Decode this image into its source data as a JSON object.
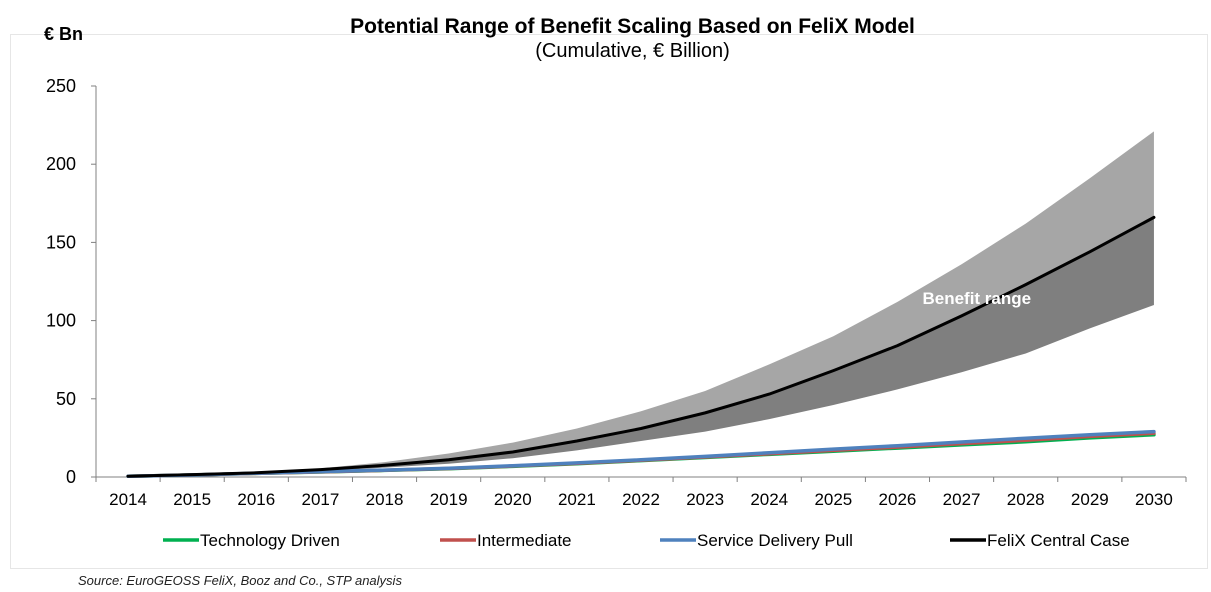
{
  "title": "Potential Range of Benefit Scaling Based on FeliX Model",
  "subtitle": "(Cumulative, € Billion)",
  "unit_label": "€ Bn",
  "source": "Source: EuroGEOSS FeliX, Booz and Co., STP analysis",
  "chart_data": {
    "type": "area",
    "title": "Potential Range of Benefit Scaling Based on FeliX Model",
    "subtitle": "(Cumulative, € Billion)",
    "ylabel": "€ Bn",
    "ylim": [
      0,
      250
    ],
    "yticks": [
      0,
      50,
      100,
      150,
      200,
      250
    ],
    "grid": false,
    "legend_position": "bottom",
    "categories": [
      "2014",
      "2015",
      "2016",
      "2017",
      "2018",
      "2019",
      "2020",
      "2021",
      "2022",
      "2023",
      "2024",
      "2025",
      "2026",
      "2027",
      "2028",
      "2029",
      "2030"
    ],
    "band": {
      "label": "Benefit range",
      "upper": [
        0.5,
        1.5,
        3,
        5.5,
        9.5,
        15,
        22,
        31,
        42,
        55,
        72,
        90,
        112,
        136,
        162,
        191,
        221
      ],
      "lower": [
        0.5,
        1.2,
        2.2,
        3.8,
        6,
        8.5,
        12,
        17,
        23,
        29,
        37,
        46,
        56,
        67,
        79,
        95,
        110
      ],
      "upper_color": "#a6a6a6",
      "lower_color": "#7f7f7f"
    },
    "series": [
      {
        "name": "Technology Driven",
        "color": "#00b050",
        "values": [
          0.5,
          1.3,
          2.3,
          3.2,
          4.2,
          5.3,
          6.8,
          8.5,
          10.5,
          12.5,
          14.5,
          16.5,
          18.5,
          20.5,
          22.5,
          25,
          27
        ]
      },
      {
        "name": "Intermediate",
        "color": "#c0504d",
        "values": [
          0.5,
          1.3,
          2.3,
          3.3,
          4.3,
          5.4,
          7,
          8.7,
          10.7,
          12.8,
          14.9,
          17,
          19.1,
          21.3,
          23.5,
          26,
          28
        ]
      },
      {
        "name": "Service Delivery Pull",
        "color": "#4f81bd",
        "values": [
          0.5,
          1.3,
          2.4,
          3.4,
          4.4,
          5.6,
          7.2,
          9,
          11,
          13.2,
          15.5,
          17.8,
          20,
          22.4,
          24.8,
          27,
          29
        ]
      },
      {
        "name": "FeliX Central Case",
        "color": "#000000",
        "values": [
          0.5,
          1.5,
          2.7,
          4.7,
          7.5,
          11,
          16,
          23,
          31,
          41,
          53,
          68,
          84,
          103,
          123,
          144,
          166
        ]
      }
    ]
  }
}
